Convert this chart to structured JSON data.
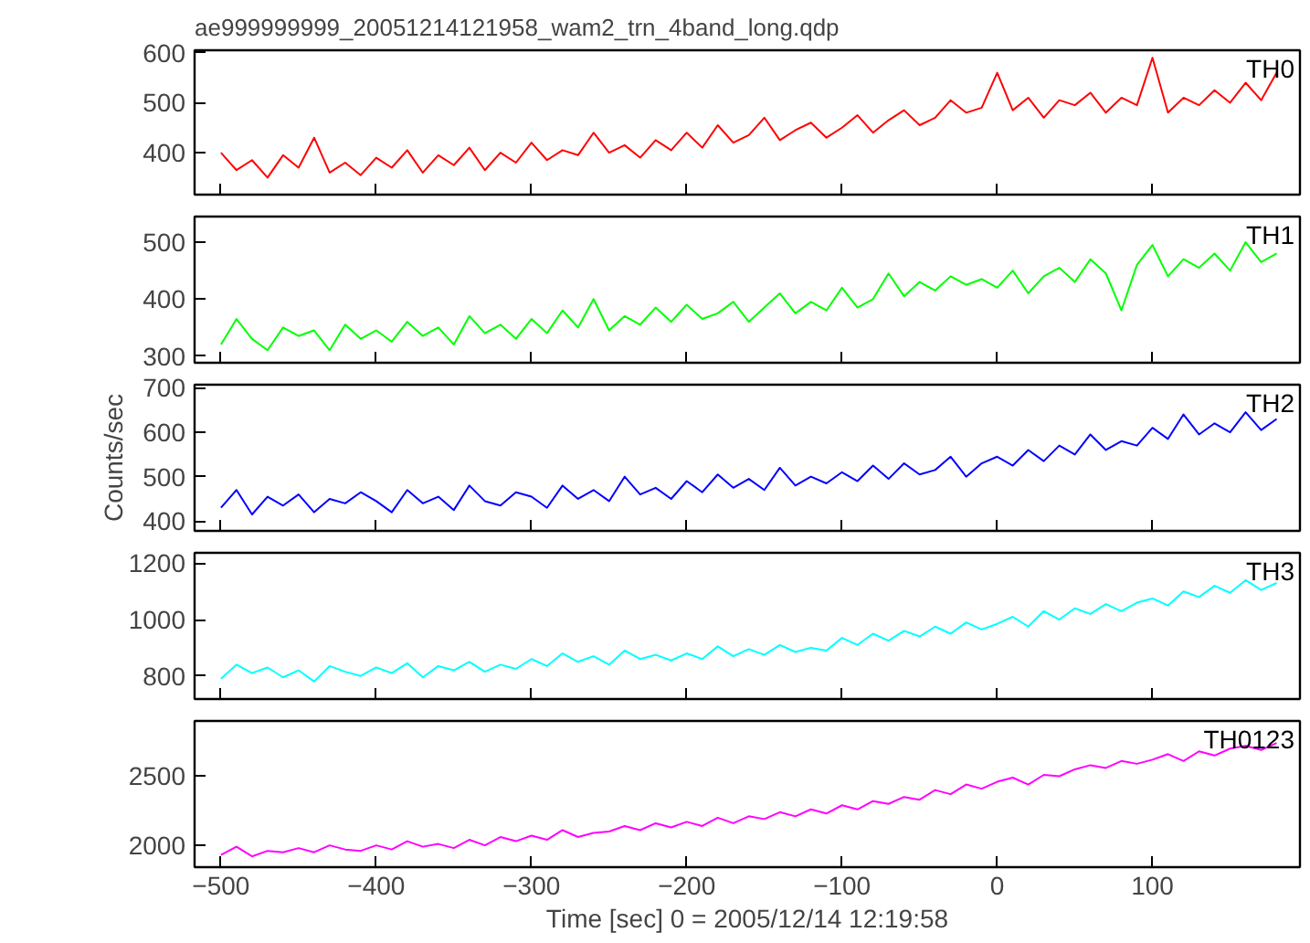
{
  "chart_data": [
    {
      "type": "line",
      "title": "ae999999999_20051214121958_wam2_trn_4band_long.qdp",
      "xlim": [
        -517,
        195
      ],
      "xticks": [
        -500,
        -400,
        -300,
        -200,
        -100,
        0,
        100
      ],
      "ylim": [
        316,
        605
      ],
      "yticks": [
        400,
        500,
        600
      ],
      "tick_labels": "y",
      "grid": false,
      "series": [
        {
          "name": "TH0",
          "x": [
            -500,
            -490,
            -480,
            -470,
            -460,
            -450,
            -440,
            -430,
            -420,
            -410,
            -400,
            -390,
            -380,
            -370,
            -360,
            -350,
            -340,
            -330,
            -320,
            -310,
            -300,
            -290,
            -280,
            -270,
            -260,
            -250,
            -240,
            -230,
            -220,
            -210,
            -200,
            -190,
            -180,
            -170,
            -160,
            -150,
            -140,
            -130,
            -120,
            -110,
            -100,
            -90,
            -80,
            -70,
            -60,
            -50,
            -40,
            -30,
            -20,
            -10,
            0,
            10,
            20,
            30,
            40,
            50,
            60,
            70,
            80,
            90,
            100,
            110,
            120,
            130,
            140,
            150,
            160,
            170,
            180
          ],
          "color": "#ff0000",
          "values": [
            400,
            365,
            385,
            350,
            395,
            370,
            430,
            360,
            380,
            355,
            390,
            370,
            405,
            360,
            395,
            375,
            410,
            365,
            400,
            380,
            420,
            385,
            405,
            395,
            440,
            400,
            415,
            390,
            425,
            405,
            440,
            410,
            455,
            420,
            435,
            470,
            425,
            445,
            460,
            430,
            450,
            475,
            440,
            465,
            485,
            455,
            470,
            505,
            480,
            490,
            560,
            485,
            510,
            470,
            505,
            495,
            520,
            480,
            510,
            495,
            590,
            480,
            510,
            495,
            525,
            500,
            540,
            505,
            560
          ]
        }
      ]
    },
    {
      "type": "line",
      "xlim": [
        -517,
        195
      ],
      "xticks": [
        -500,
        -400,
        -300,
        -200,
        -100,
        0,
        100
      ],
      "ylim": [
        288,
        545
      ],
      "yticks": [
        300,
        400,
        500
      ],
      "tick_labels": "y",
      "grid": false,
      "series": [
        {
          "name": "TH1",
          "x": [
            -500,
            -490,
            -480,
            -470,
            -460,
            -450,
            -440,
            -430,
            -420,
            -410,
            -400,
            -390,
            -380,
            -370,
            -360,
            -350,
            -340,
            -330,
            -320,
            -310,
            -300,
            -290,
            -280,
            -270,
            -260,
            -250,
            -240,
            -230,
            -220,
            -210,
            -200,
            -190,
            -180,
            -170,
            -160,
            -150,
            -140,
            -130,
            -120,
            -110,
            -100,
            -90,
            -80,
            -70,
            -60,
            -50,
            -40,
            -30,
            -20,
            -10,
            0,
            10,
            20,
            30,
            40,
            50,
            60,
            70,
            80,
            90,
            100,
            110,
            120,
            130,
            140,
            150,
            160,
            170,
            180
          ],
          "color": "#00ff00",
          "values": [
            320,
            365,
            330,
            310,
            350,
            335,
            345,
            310,
            355,
            330,
            345,
            325,
            360,
            335,
            350,
            320,
            370,
            340,
            355,
            330,
            365,
            340,
            380,
            350,
            400,
            345,
            370,
            355,
            385,
            360,
            390,
            365,
            375,
            395,
            360,
            385,
            410,
            375,
            395,
            380,
            420,
            385,
            400,
            445,
            405,
            430,
            415,
            440,
            425,
            435,
            420,
            450,
            410,
            440,
            455,
            430,
            470,
            445,
            380,
            460,
            495,
            440,
            470,
            455,
            480,
            450,
            500,
            465,
            480
          ]
        }
      ]
    },
    {
      "type": "line",
      "ylabel": "Counts/sec",
      "xlim": [
        -517,
        195
      ],
      "xticks": [
        -500,
        -400,
        -300,
        -200,
        -100,
        0,
        100
      ],
      "ylim": [
        378,
        707
      ],
      "yticks": [
        400,
        500,
        600,
        700
      ],
      "tick_labels": "y",
      "grid": false,
      "series": [
        {
          "name": "TH2",
          "x": [
            -500,
            -490,
            -480,
            -470,
            -460,
            -450,
            -440,
            -430,
            -420,
            -410,
            -400,
            -390,
            -380,
            -370,
            -360,
            -350,
            -340,
            -330,
            -320,
            -310,
            -300,
            -290,
            -280,
            -270,
            -260,
            -250,
            -240,
            -230,
            -220,
            -210,
            -200,
            -190,
            -180,
            -170,
            -160,
            -150,
            -140,
            -130,
            -120,
            -110,
            -100,
            -90,
            -80,
            -70,
            -60,
            -50,
            -40,
            -30,
            -20,
            -10,
            0,
            10,
            20,
            30,
            40,
            50,
            60,
            70,
            80,
            90,
            100,
            110,
            120,
            130,
            140,
            150,
            160,
            170,
            180
          ],
          "color": "#0000ff",
          "values": [
            430,
            470,
            415,
            455,
            435,
            460,
            420,
            450,
            440,
            465,
            445,
            420,
            470,
            440,
            455,
            425,
            480,
            445,
            435,
            465,
            455,
            430,
            480,
            450,
            470,
            445,
            500,
            460,
            475,
            450,
            490,
            465,
            505,
            475,
            495,
            470,
            520,
            480,
            500,
            485,
            510,
            490,
            525,
            495,
            530,
            505,
            515,
            545,
            500,
            530,
            545,
            525,
            560,
            535,
            570,
            550,
            595,
            560,
            580,
            570,
            610,
            585,
            640,
            595,
            620,
            600,
            645,
            605,
            630
          ]
        }
      ]
    },
    {
      "type": "line",
      "xlim": [
        -517,
        195
      ],
      "xticks": [
        -500,
        -400,
        -300,
        -200,
        -100,
        0,
        100
      ],
      "ylim": [
        718,
        1237
      ],
      "yticks": [
        800,
        1000,
        1200
      ],
      "tick_labels": "y",
      "grid": false,
      "series": [
        {
          "name": "TH3",
          "x": [
            -500,
            -490,
            -480,
            -470,
            -460,
            -450,
            -440,
            -430,
            -420,
            -410,
            -400,
            -390,
            -380,
            -370,
            -360,
            -350,
            -340,
            -330,
            -320,
            -310,
            -300,
            -290,
            -280,
            -270,
            -260,
            -250,
            -240,
            -230,
            -220,
            -210,
            -200,
            -190,
            -180,
            -170,
            -160,
            -150,
            -140,
            -130,
            -120,
            -110,
            -100,
            -90,
            -80,
            -70,
            -60,
            -50,
            -40,
            -30,
            -20,
            -10,
            0,
            10,
            20,
            30,
            40,
            50,
            60,
            70,
            80,
            90,
            100,
            110,
            120,
            130,
            140,
            150,
            160,
            170,
            180
          ],
          "color": "#00ffff",
          "values": [
            790,
            840,
            810,
            830,
            795,
            820,
            780,
            835,
            815,
            800,
            830,
            810,
            845,
            795,
            835,
            820,
            850,
            815,
            840,
            825,
            860,
            835,
            880,
            850,
            870,
            840,
            890,
            860,
            875,
            855,
            880,
            860,
            905,
            870,
            895,
            875,
            910,
            885,
            900,
            890,
            935,
            910,
            950,
            925,
            960,
            940,
            975,
            950,
            990,
            965,
            985,
            1010,
            975,
            1030,
            1000,
            1040,
            1020,
            1055,
            1030,
            1060,
            1075,
            1050,
            1100,
            1080,
            1120,
            1095,
            1140,
            1105,
            1130
          ]
        }
      ]
    },
    {
      "type": "line",
      "xlabel": "Time [sec] 0 = 2005/12/14 12:19:58",
      "xlim": [
        -517,
        195
      ],
      "xticks": [
        -500,
        -400,
        -300,
        -200,
        -100,
        0,
        100
      ],
      "ylim": [
        1842,
        2900
      ],
      "yticks": [
        2000,
        2500
      ],
      "grid": false,
      "series": [
        {
          "name": "TH0123",
          "x": [
            -500,
            -490,
            -480,
            -470,
            -460,
            -450,
            -440,
            -430,
            -420,
            -410,
            -400,
            -390,
            -380,
            -370,
            -360,
            -350,
            -340,
            -330,
            -320,
            -310,
            -300,
            -290,
            -280,
            -270,
            -260,
            -250,
            -240,
            -230,
            -220,
            -210,
            -200,
            -190,
            -180,
            -170,
            -160,
            -150,
            -140,
            -130,
            -120,
            -110,
            -100,
            -90,
            -80,
            -70,
            -60,
            -50,
            -40,
            -30,
            -20,
            -10,
            0,
            10,
            20,
            30,
            40,
            50,
            60,
            70,
            80,
            90,
            100,
            110,
            120,
            130,
            140,
            150,
            160,
            170,
            180
          ],
          "color": "#ff00ff",
          "values": [
            1930,
            1990,
            1920,
            1960,
            1950,
            1980,
            1950,
            2000,
            1970,
            1960,
            2000,
            1970,
            2030,
            1990,
            2010,
            1980,
            2040,
            2000,
            2060,
            2030,
            2070,
            2040,
            2110,
            2060,
            2090,
            2100,
            2140,
            2110,
            2160,
            2130,
            2170,
            2140,
            2200,
            2160,
            2210,
            2190,
            2240,
            2210,
            2260,
            2230,
            2290,
            2260,
            2320,
            2300,
            2350,
            2330,
            2400,
            2370,
            2440,
            2410,
            2460,
            2490,
            2440,
            2510,
            2500,
            2550,
            2580,
            2560,
            2610,
            2590,
            2620,
            2660,
            2610,
            2680,
            2650,
            2700,
            2720,
            2690,
            2740
          ]
        }
      ]
    }
  ]
}
